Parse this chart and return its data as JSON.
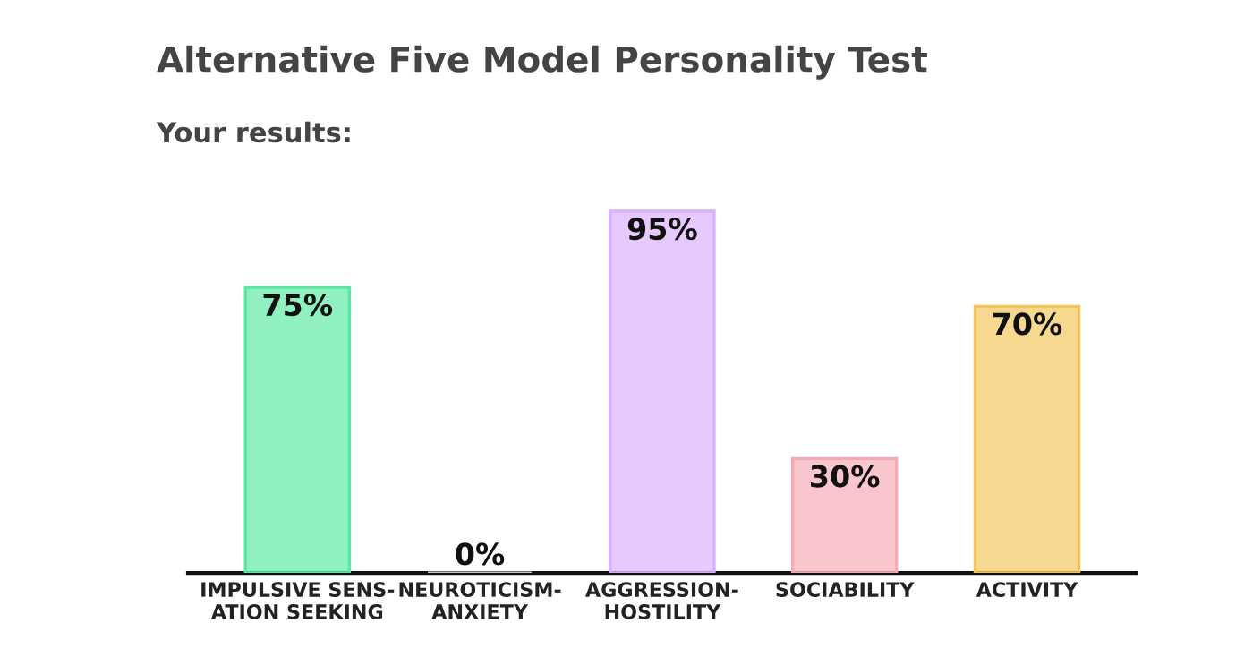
{
  "chart_data": {
    "type": "bar",
    "title": "Alternative Five Model Personality Test",
    "subtitle": "Your results:",
    "categories": [
      "IMPULSIVE SENS-\nATION SEEKING",
      "NEUROTICISM-\nANXIETY",
      "AGGRESSION-\nHOSTILITY",
      "SOCIABILITY",
      "ACTIVITY"
    ],
    "values": [
      75,
      0,
      95,
      30,
      70
    ],
    "colors": [
      "#5ae8a0",
      "#c8c8c8",
      "#d9b0ff",
      "#f5a9b2",
      "#f2c45a"
    ],
    "value_labels": [
      "75%",
      "0%",
      "95%",
      "30%",
      "70%"
    ],
    "tick_labels": "x"
  }
}
